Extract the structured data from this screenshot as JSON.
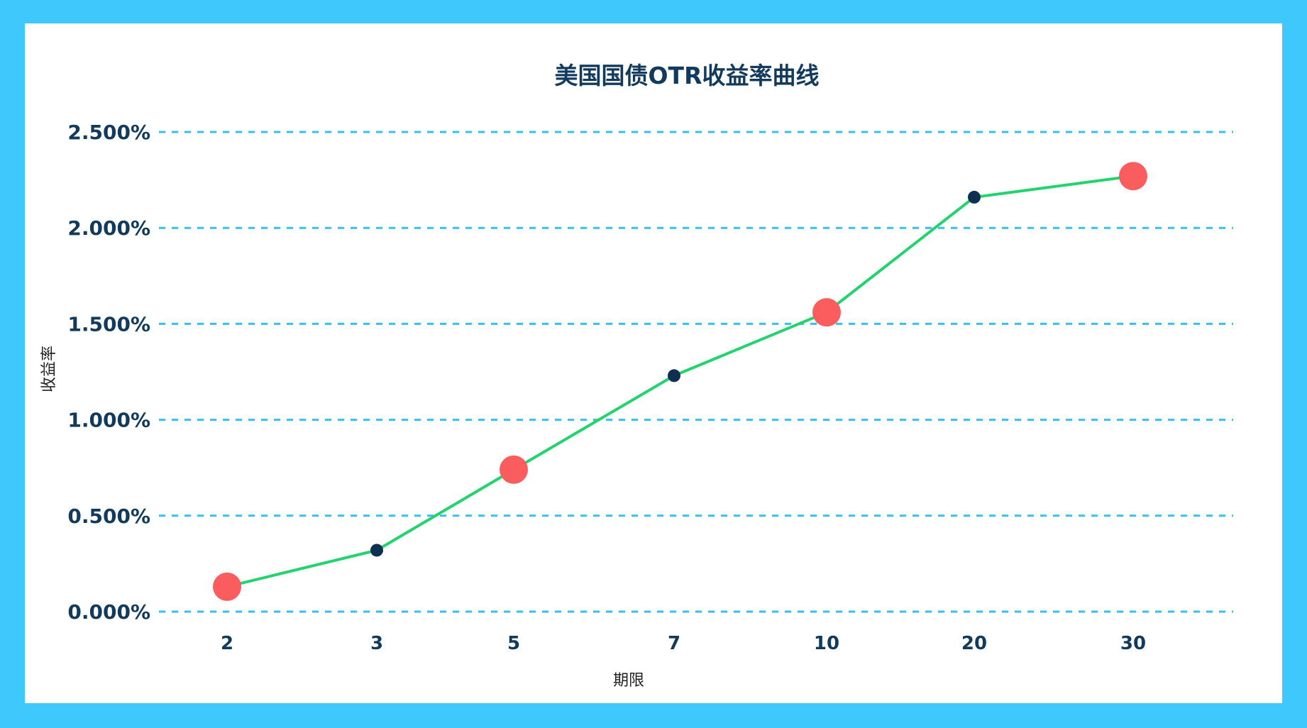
{
  "chart_data": {
    "type": "line",
    "title": "美国国债OTR收益率曲线",
    "xlabel": "期限",
    "ylabel": "收益率",
    "categories": [
      "2",
      "3",
      "5",
      "7",
      "10",
      "20",
      "30"
    ],
    "series": [
      {
        "values": [
          0.13,
          0.32,
          0.74,
          1.23,
          1.56,
          2.16,
          2.27
        ]
      }
    ],
    "highlighted_categories": [
      "2",
      "5",
      "10",
      "30"
    ],
    "ylim": [
      0,
      2.5
    ],
    "yticks": [
      0,
      0.5,
      1.0,
      1.5,
      2.0,
      2.5
    ],
    "ytick_labels": [
      "0.000%",
      "0.500%",
      "1.000%",
      "1.500%",
      "2.000%",
      "2.500%"
    ],
    "grid": true,
    "legend": "none",
    "colors": {
      "background": "#3fc8fb",
      "panel": "#ffffff",
      "line": "#22d36e",
      "highlight_marker": "#fb5c5e",
      "marker": "#0d2f52",
      "grid": "#3dbdeb",
      "text": "#123a5c"
    }
  }
}
